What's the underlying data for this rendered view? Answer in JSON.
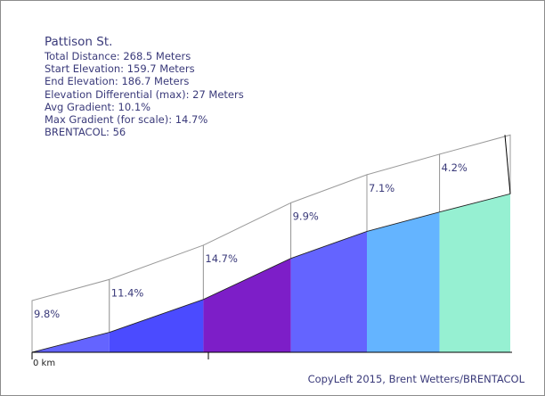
{
  "info": {
    "title": "Pattison St.",
    "lines": [
      "Total Distance: 268.5 Meters",
      "Start Elevation: 159.7 Meters",
      "End Elevation: 186.7 Meters",
      "Elevation Differential (max): 27 Meters",
      "Avg Gradient: 10.1%",
      "Max Gradient (for scale): 14.7%",
      "BRENTACOL: 56"
    ]
  },
  "credit": "CopyLeft 2015, Brent Wetters/BRENTACOL",
  "chart_data": {
    "type": "area",
    "title": "Pattison St.",
    "x_unit": "meters",
    "xlim": [
      0,
      268.5
    ],
    "ylim_elevation": [
      159.7,
      186.7
    ],
    "x_tick_labels": [
      "0 km"
    ],
    "segments": [
      {
        "start": 0,
        "end": 43.4,
        "gradient_label": "9.8%",
        "color": "#6464ff"
      },
      {
        "start": 43.4,
        "end": 96.2,
        "gradient_label": "11.4%",
        "color": "#4b4bff"
      },
      {
        "start": 96.2,
        "end": 145.3,
        "gradient_label": "14.7%",
        "color": "#7d1ec8"
      },
      {
        "start": 145.3,
        "end": 188.0,
        "gradient_label": "9.9%",
        "color": "#6464ff"
      },
      {
        "start": 188.0,
        "end": 228.8,
        "gradient_label": "7.1%",
        "color": "#64b4ff"
      },
      {
        "start": 228.8,
        "end": 268.5,
        "gradient_label": "4.2%",
        "color": "#96f0d2"
      }
    ],
    "elevation_profile": [
      {
        "x": 0,
        "y": 159.7
      },
      {
        "x": 43.4,
        "y": 163.1
      },
      {
        "x": 96.2,
        "y": 168.7
      },
      {
        "x": 145.3,
        "y": 175.7
      },
      {
        "x": 188.0,
        "y": 180.3
      },
      {
        "x": 228.8,
        "y": 183.6
      },
      {
        "x": 268.5,
        "y": 186.7
      }
    ]
  }
}
